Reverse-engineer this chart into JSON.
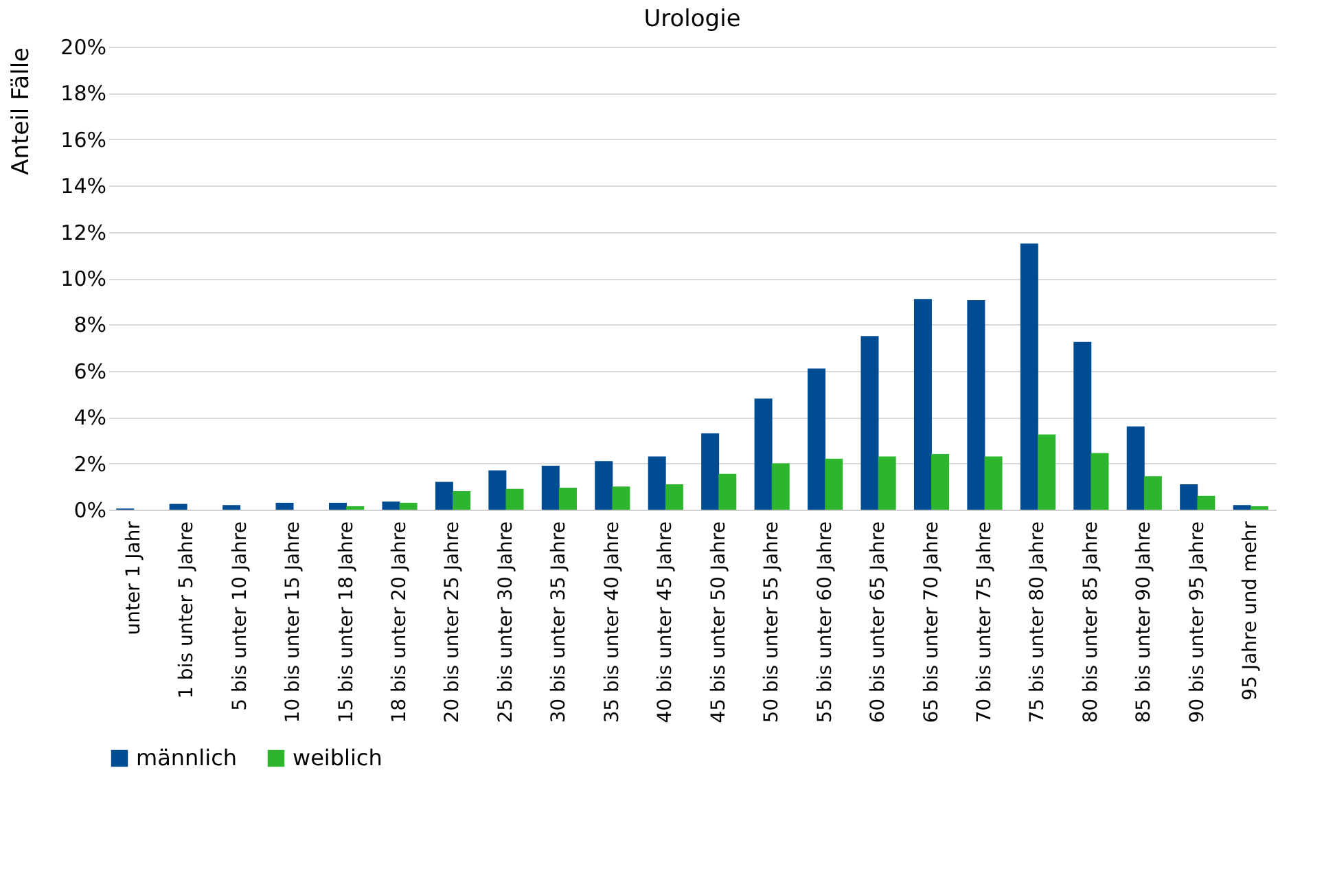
{
  "chart_data": {
    "type": "bar",
    "title": "Urologie",
    "ylabel": "Anteil Fälle",
    "categories": [
      "unter 1 Jahr",
      "1 bis unter 5 Jahre",
      "5 bis unter 10 Jahre",
      "10 bis unter 15 Jahre",
      "15 bis unter 18 Jahre",
      "18 bis unter 20 Jahre",
      "20 bis unter 25 Jahre",
      "25 bis unter 30 Jahre",
      "30 bis unter 35 Jahre",
      "35 bis unter 40 Jahre",
      "40 bis unter 45 Jahre",
      "45 bis unter 50 Jahre",
      "50 bis unter 55 Jahre",
      "55 bis unter 60 Jahre",
      "60 bis unter 65 Jahre",
      "65 bis unter 70 Jahre",
      "70 bis unter 75 Jahre",
      "75 bis unter 80 Jahre",
      "80 bis unter 85 Jahre",
      "85 bis unter 90 Jahre",
      "90 bis unter 95 Jahre",
      "95 Jahre und mehr"
    ],
    "series": [
      {
        "name": "männlich",
        "color": "#004c93",
        "values": [
          0.05,
          0.25,
          0.2,
          0.3,
          0.3,
          0.35,
          1.2,
          1.7,
          1.9,
          2.1,
          2.3,
          3.3,
          4.8,
          6.1,
          7.5,
          9.1,
          9.05,
          11.5,
          7.25,
          3.6,
          1.1,
          0.2
        ]
      },
      {
        "name": "weiblich",
        "color": "#2db52d",
        "values": [
          0,
          0,
          0,
          0,
          0.15,
          0.3,
          0.8,
          0.9,
          0.95,
          1.0,
          1.1,
          1.55,
          2.0,
          2.2,
          2.3,
          2.4,
          2.3,
          3.25,
          2.45,
          1.45,
          0.6,
          0.15
        ]
      }
    ],
    "ylim": [
      0,
      20
    ],
    "yticks": [
      {
        "value": 0,
        "label": "0%"
      },
      {
        "value": 2,
        "label": "2%"
      },
      {
        "value": 4,
        "label": "4%"
      },
      {
        "value": 6,
        "label": "6%"
      },
      {
        "value": 8,
        "label": "8%"
      },
      {
        "value": 10,
        "label": "10%"
      },
      {
        "value": 12,
        "label": "12%"
      },
      {
        "value": 14,
        "label": "14%"
      },
      {
        "value": 16,
        "label": "16%"
      },
      {
        "value": 18,
        "label": "18%"
      },
      {
        "value": 20,
        "label": "20%"
      }
    ],
    "grid": "y",
    "legend": "bottom"
  }
}
